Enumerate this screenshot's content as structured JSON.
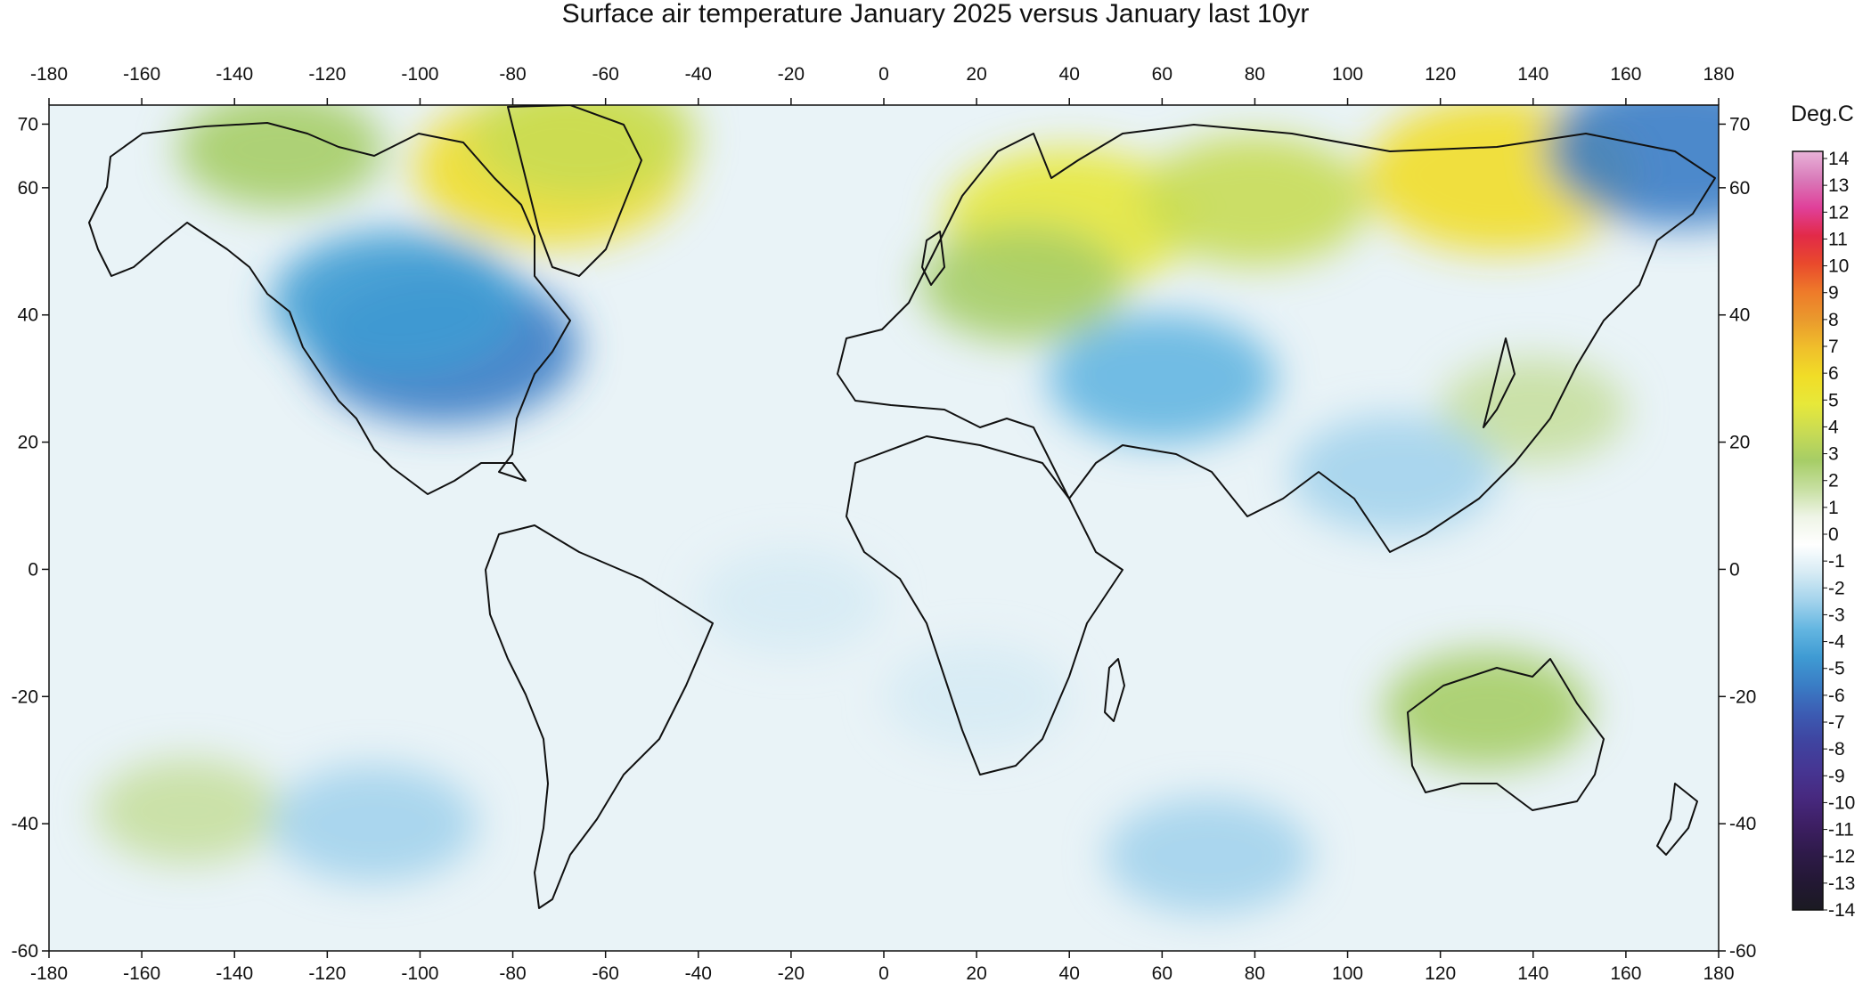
{
  "title": "Surface air temperature January 2025 versus January last 10yr",
  "legend": {
    "unit": "Deg.C",
    "ticks": [
      "14",
      "13",
      "12",
      "11",
      "10",
      "9",
      "8",
      "7",
      "6",
      "5",
      "4",
      "3",
      "2",
      "1",
      "0",
      "-1",
      "-2",
      "-3",
      "-4",
      "-5",
      "-6",
      "-7",
      "-8",
      "-9",
      "-10",
      "-11",
      "-12",
      "-13",
      "-14"
    ],
    "colors": [
      "#e8b3d8",
      "#d97ab9",
      "#e0409a",
      "#e22a48",
      "#e94a2c",
      "#ee7a2a",
      "#ea9a2d",
      "#f0bf2b",
      "#f1dd27",
      "#e7e83a",
      "#c8db54",
      "#a6cd66",
      "#c6dfa0",
      "#eef4e6",
      "#ffffff",
      "#d6ebf4",
      "#a3d3ec",
      "#64b6e1",
      "#3f9bd3",
      "#3a7dc5",
      "#3c5cb3",
      "#3f44a0",
      "#463693",
      "#47297f",
      "#3d1f63",
      "#2e1a49",
      "#231834",
      "#1b1a22"
    ]
  },
  "axes": {
    "x_ticks": [
      "-180",
      "-160",
      "-140",
      "-120",
      "-100",
      "-80",
      "-60",
      "-40",
      "-20",
      "0",
      "20",
      "40",
      "60",
      "80",
      "100",
      "120",
      "140",
      "160",
      "180"
    ],
    "y_ticks": [
      "70",
      "60",
      "40",
      "20",
      "0",
      "-20",
      "-40",
      "-60"
    ],
    "x_range": [
      -180,
      180
    ],
    "y_range": [
      -60,
      73
    ]
  },
  "chart_data": {
    "type": "heatmap",
    "title": "Surface air temperature January 2025 versus January last 10yr",
    "xlabel": "",
    "ylabel": "",
    "colorbar_label": "Deg.C",
    "colorbar_range": [
      -14,
      14
    ],
    "xlim": [
      -180,
      180
    ],
    "ylim": [
      -60,
      73
    ],
    "anomaly_regions": [
      {
        "lon": -72,
        "lat": 63,
        "anomaly": 6
      },
      {
        "lon": -65,
        "lat": 68,
        "anomaly": 4
      },
      {
        "lon": -130,
        "lat": 66,
        "anomaly": 3
      },
      {
        "lon": 40,
        "lat": 55,
        "anomaly": 5
      },
      {
        "lon": 80,
        "lat": 58,
        "anomaly": 4
      },
      {
        "lon": 133,
        "lat": 62,
        "anomaly": 6
      },
      {
        "lon": 30,
        "lat": 45,
        "anomaly": 3
      },
      {
        "lon": 140,
        "lat": 25,
        "anomaly": 2
      },
      {
        "lon": 130,
        "lat": -22,
        "anomaly": 3
      },
      {
        "lon": -150,
        "lat": -38,
        "anomaly": 2
      },
      {
        "lon": -95,
        "lat": 35,
        "anomaly": -6
      },
      {
        "lon": -105,
        "lat": 42,
        "anomaly": -5
      },
      {
        "lon": 172,
        "lat": 66,
        "anomaly": -6
      },
      {
        "lon": 60,
        "lat": 30,
        "anomaly": -4
      },
      {
        "lon": 110,
        "lat": 15,
        "anomaly": -3
      },
      {
        "lon": -110,
        "lat": -40,
        "anomaly": -3
      },
      {
        "lon": -20,
        "lat": -5,
        "anomaly": -2
      },
      {
        "lon": 70,
        "lat": -45,
        "anomaly": -3
      },
      {
        "lon": 20,
        "lat": -20,
        "anomaly": -2
      }
    ]
  }
}
